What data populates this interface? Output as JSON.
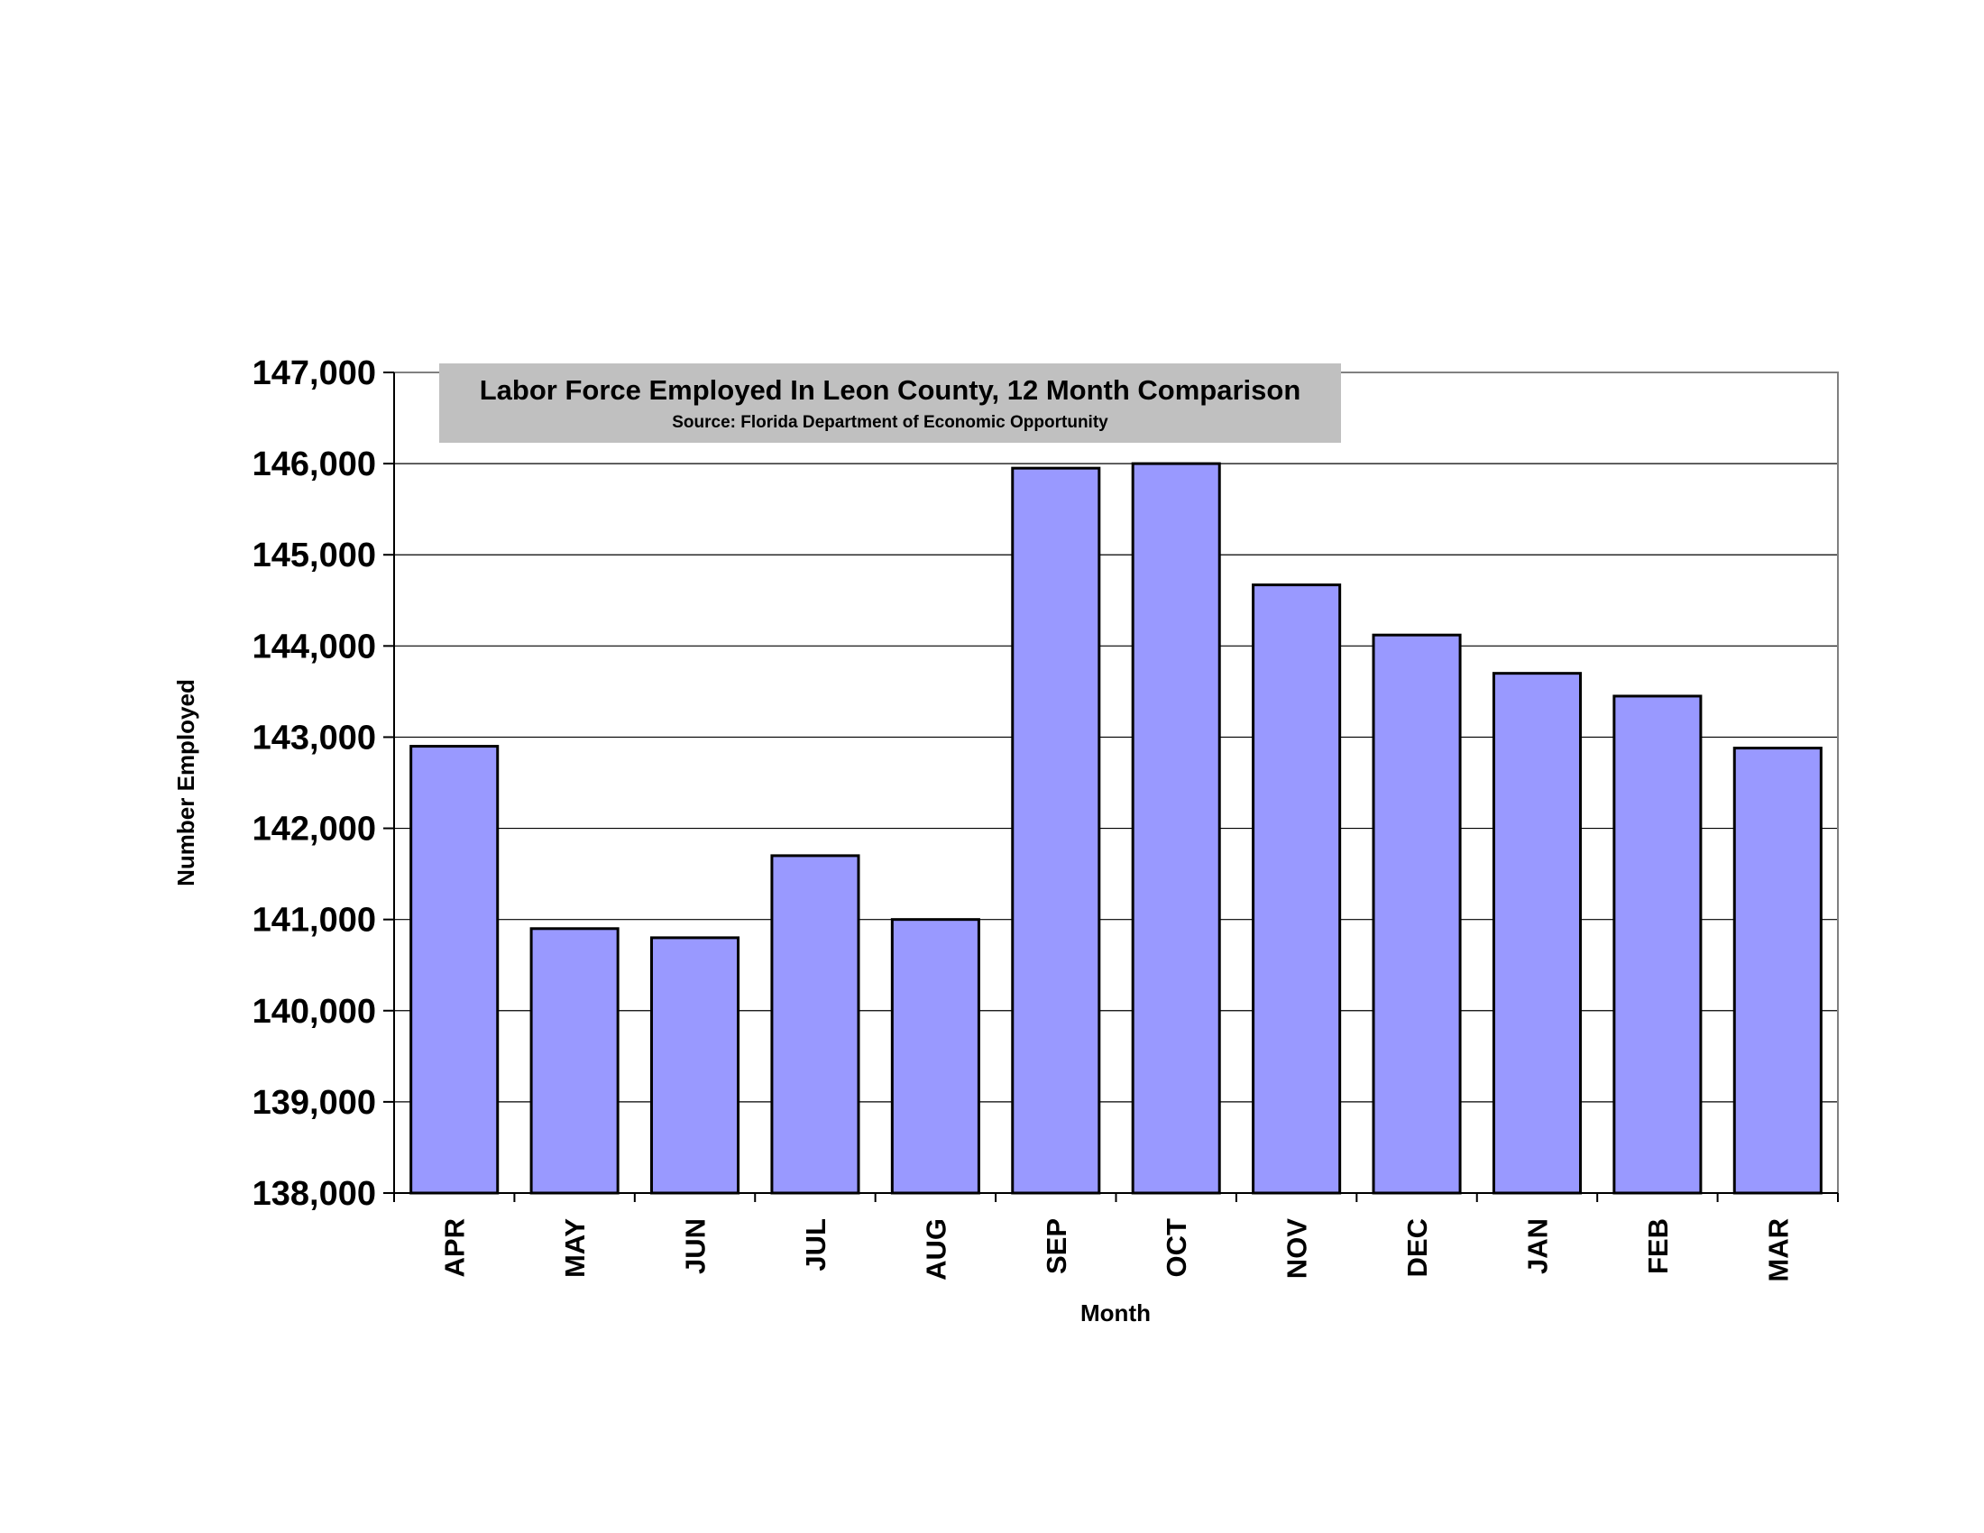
{
  "chart_data": {
    "type": "bar",
    "title": "Labor Force Employed In Leon County, 12 Month Comparison",
    "subtitle": "Source: Florida Department of Economic Opportunity",
    "xlabel": "Month",
    "ylabel": "Number Employed",
    "categories": [
      "APR",
      "MAY",
      "JUN",
      "JUL",
      "AUG",
      "SEP",
      "OCT",
      "NOV",
      "DEC",
      "JAN",
      "FEB",
      "MAR"
    ],
    "values": [
      142900,
      140900,
      140800,
      141700,
      141000,
      145950,
      146000,
      144670,
      144120,
      143700,
      143450,
      142880
    ],
    "ylim": [
      138000,
      147000
    ],
    "yticks": [
      138000,
      139000,
      140000,
      141000,
      142000,
      143000,
      144000,
      145000,
      146000,
      147000
    ],
    "ytick_labels": [
      "138,000",
      "139,000",
      "140,000",
      "141,000",
      "142,000",
      "143,000",
      "144,000",
      "145,000",
      "146,000",
      "147,000"
    ],
    "grid": true,
    "colors": {
      "bar_fill": "#9999ff",
      "bar_stroke": "#000000",
      "title_box": "#c0c0c0",
      "gridline": "#000000",
      "frame": "#808080"
    }
  }
}
